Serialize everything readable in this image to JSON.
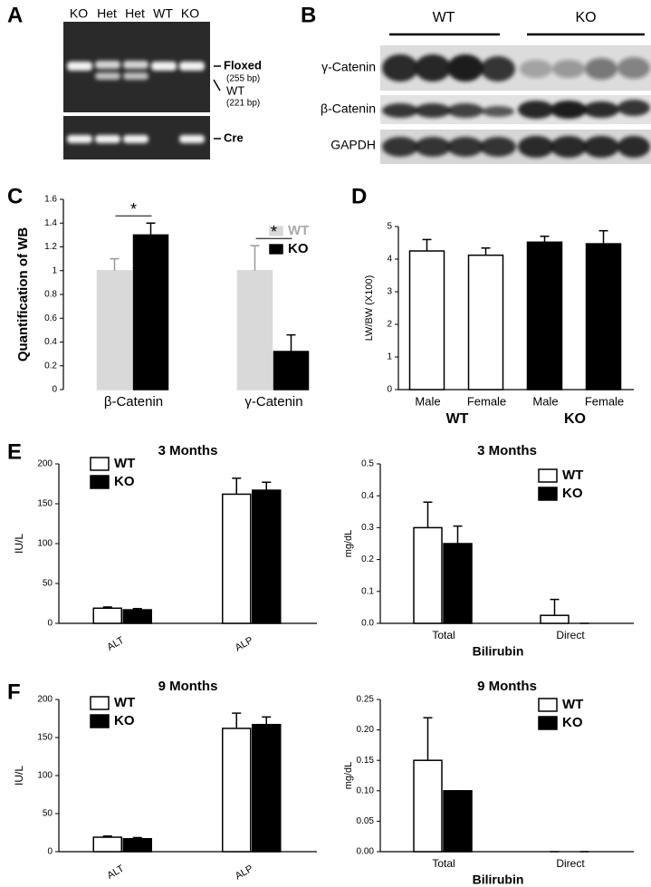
{
  "gel": {
    "panel": "A",
    "lanes": [
      "KO",
      "Het",
      "Het",
      "WT",
      "KO"
    ],
    "bands": [
      {
        "name": "Floxed",
        "size": "(255 bp)"
      },
      {
        "name": "WT",
        "size": "(221 bp)"
      },
      {
        "name": "Cre"
      }
    ]
  },
  "blot": {
    "panel": "B",
    "groups": [
      "WT",
      "KO"
    ],
    "rows": [
      "γ-Catenin",
      "β-Catenin",
      "GAPDH"
    ]
  },
  "chart_data": [
    {
      "type": "bar",
      "panel": "C",
      "ylabel": "Quantification of WB",
      "categories": [
        "β-Catenin",
        "γ-Catenin"
      ],
      "series": [
        {
          "name": "WT",
          "color": "#d9d9d9",
          "values": [
            1,
            1
          ],
          "errors": [
            0.1,
            0.21
          ]
        },
        {
          "name": "KO",
          "color": "#000000",
          "values": [
            1.3,
            0.32
          ],
          "errors": [
            0.1,
            0.14
          ]
        }
      ],
      "annotations": [
        "*",
        "*"
      ],
      "ylim": [
        0,
        1.6
      ],
      "yticks": [
        0,
        0.2,
        0.4,
        0.6,
        0.8,
        1,
        1.2,
        1.4,
        1.6
      ],
      "legend": "top-right"
    },
    {
      "type": "bar",
      "panel": "D",
      "ylabel": "LW/BW (X100)",
      "categories": [
        "Male",
        "Female",
        "Male",
        "Female"
      ],
      "groups": [
        "WT",
        "KO"
      ],
      "values": [
        4.25,
        4.12,
        4.52,
        4.47
      ],
      "errors": [
        0.35,
        0.22,
        0.18,
        0.4
      ],
      "colors": [
        "#ffffff",
        "#ffffff",
        "#000000",
        "#000000"
      ],
      "ylim": [
        0,
        5
      ],
      "yticks": [
        0,
        1,
        2,
        3,
        4,
        5
      ]
    },
    {
      "type": "bar",
      "panel": "E",
      "title": "3 Months",
      "ylabel": "IU/L",
      "categories": [
        "ALT",
        "ALP"
      ],
      "series": [
        {
          "name": "WT",
          "color": "#ffffff",
          "values": [
            19,
            162
          ],
          "errors": [
            1.5,
            20
          ]
        },
        {
          "name": "KO",
          "color": "#000000",
          "values": [
            17,
            167
          ],
          "errors": [
            1.5,
            10
          ]
        }
      ],
      "ylim": [
        0,
        200
      ],
      "yticks": [
        0,
        50,
        100,
        150,
        200
      ],
      "legend": "top-left"
    },
    {
      "type": "bar",
      "title": "3 Months",
      "ylabel": "mg/dL",
      "xlabel": "Bilirubin",
      "categories": [
        "Total",
        "Direct"
      ],
      "series": [
        {
          "name": "WT",
          "color": "#ffffff",
          "values": [
            0.3,
            0.025
          ],
          "errors": [
            0.08,
            0.05
          ]
        },
        {
          "name": "KO",
          "color": "#000000",
          "values": [
            0.25,
            0
          ],
          "errors": [
            0.055,
            0
          ]
        }
      ],
      "ylim": [
        0,
        0.5
      ],
      "yticks": [
        {
          "value": 0,
          "label": "0.0"
        },
        0.1,
        0.2,
        0.3,
        0.4,
        0.5
      ],
      "legend": "top-right"
    },
    {
      "type": "bar",
      "panel": "F",
      "title": "9 Months",
      "ylabel": "IU/L",
      "categories": [
        "ALT",
        "ALP"
      ],
      "series": [
        {
          "name": "WT",
          "color": "#ffffff",
          "values": [
            19,
            162
          ],
          "errors": [
            1.5,
            20
          ]
        },
        {
          "name": "KO",
          "color": "#000000",
          "values": [
            17,
            167
          ],
          "errors": [
            1.5,
            10
          ]
        }
      ],
      "ylim": [
        0,
        200
      ],
      "yticks": [
        0,
        50,
        100,
        150,
        200
      ],
      "legend": "top-left"
    },
    {
      "type": "bar",
      "title": "9 Months",
      "ylabel": "mg/dL",
      "xlabel": "Bilirubin",
      "categories": [
        "Total",
        "Direct"
      ],
      "series": [
        {
          "name": "WT",
          "color": "#ffffff",
          "values": [
            0.15,
            0
          ],
          "errors": [
            0.07,
            0
          ]
        },
        {
          "name": "KO",
          "color": "#000000",
          "values": [
            0.1,
            0
          ],
          "errors": [
            0,
            0
          ]
        }
      ],
      "ylim": [
        0,
        0.25
      ],
      "yticks": [
        {
          "value": 0,
          "label": "0.00"
        },
        {
          "value": 0.05,
          "label": "0.05"
        },
        {
          "value": 0.1,
          "label": "0.10"
        },
        {
          "value": 0.15,
          "label": "0.15"
        },
        {
          "value": 0.2,
          "label": "0.20"
        },
        {
          "value": 0.25,
          "label": "0.25"
        }
      ],
      "legend": "top-right"
    }
  ]
}
